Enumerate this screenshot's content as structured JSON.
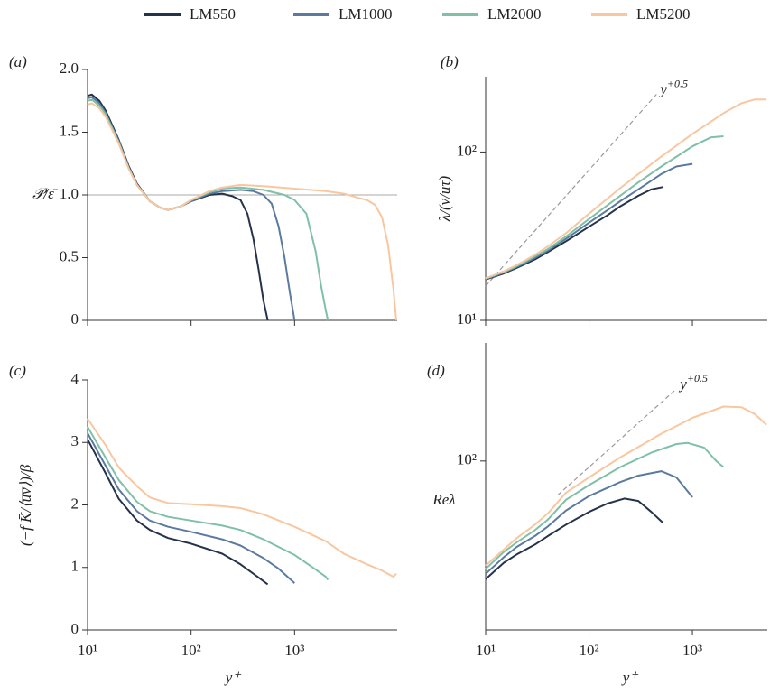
{
  "chart_data": [
    {
      "type": "line",
      "panel_label": "(a)",
      "y_label": "𝒫̄/ε̄",
      "xscale": "log",
      "yscale": "linear",
      "xlim": [
        10,
        9800
      ],
      "ylim": [
        0,
        2.0
      ],
      "xticks": [
        10,
        100,
        1000
      ],
      "yticks": [
        0,
        0.5,
        {
          "value": 1,
          "label": "1.0"
        },
        1.5,
        {
          "value": 2,
          "label": "2.0"
        }
      ],
      "hline": 1,
      "series": [
        {
          "name": "LM550",
          "color": "#26324a",
          "x": [
            10,
            11,
            13,
            15,
            20,
            25,
            30,
            40,
            50,
            60,
            80,
            100,
            150,
            200,
            250,
            300,
            350,
            400,
            450,
            500,
            550
          ],
          "values": [
            1.79,
            1.8,
            1.75,
            1.67,
            1.44,
            1.23,
            1.09,
            0.95,
            0.9,
            0.88,
            0.91,
            0.95,
            1.0,
            1.01,
            0.99,
            0.96,
            0.85,
            0.65,
            0.4,
            0.16,
            0
          ]
        },
        {
          "name": "LM1000",
          "color": "#5b7a9f",
          "x": [
            10,
            11,
            13,
            15,
            20,
            25,
            30,
            40,
            50,
            60,
            80,
            100,
            150,
            200,
            300,
            400,
            500,
            600,
            700,
            800,
            900,
            1000
          ],
          "values": [
            1.77,
            1.78,
            1.73,
            1.65,
            1.43,
            1.22,
            1.08,
            0.95,
            0.9,
            0.88,
            0.91,
            0.95,
            1.01,
            1.03,
            1.04,
            1.03,
            1.0,
            0.93,
            0.75,
            0.5,
            0.22,
            0
          ]
        },
        {
          "name": "LM2000",
          "color": "#7fc0a7",
          "x": [
            10,
            11,
            13,
            15,
            20,
            25,
            30,
            40,
            50,
            60,
            80,
            100,
            150,
            200,
            300,
            500,
            800,
            1000,
            1300,
            1600,
            1800,
            2000,
            2100
          ],
          "values": [
            1.75,
            1.76,
            1.71,
            1.64,
            1.42,
            1.21,
            1.08,
            0.95,
            0.9,
            0.88,
            0.91,
            0.96,
            1.02,
            1.05,
            1.06,
            1.04,
            1.0,
            0.96,
            0.85,
            0.55,
            0.28,
            0.08,
            0
          ]
        },
        {
          "name": "LM5200",
          "color": "#f8c7a0",
          "x": [
            10,
            11,
            13,
            15,
            20,
            25,
            30,
            40,
            50,
            60,
            80,
            100,
            150,
            200,
            300,
            500,
            1000,
            2000,
            3000,
            4000,
            5000,
            6000,
            7000,
            8000,
            9000,
            9600
          ],
          "values": [
            1.72,
            1.73,
            1.69,
            1.62,
            1.41,
            1.21,
            1.08,
            0.95,
            0.9,
            0.88,
            0.91,
            0.96,
            1.03,
            1.06,
            1.08,
            1.07,
            1.05,
            1.03,
            1.01,
            0.98,
            0.96,
            0.92,
            0.82,
            0.6,
            0.25,
            0
          ]
        }
      ]
    },
    {
      "type": "line",
      "panel_label": "(b)",
      "y_label": "λ/(ν/uτ)",
      "xscale": "log",
      "yscale": "log",
      "xlim": [
        10,
        5300
      ],
      "ylim": [
        10,
        280
      ],
      "xticks": [
        10,
        100,
        1000
      ],
      "yticks": [
        {
          "value": 10,
          "label": "10¹"
        },
        {
          "value": 100,
          "label": "10²"
        }
      ],
      "reference": {
        "x": [
          10,
          450
        ],
        "y": [
          16,
          220
        ],
        "label": "y",
        "label_sup": "+0.5"
      },
      "series": [
        {
          "color": "#26324a",
          "x": [
            10,
            15,
            20,
            30,
            40,
            60,
            100,
            150,
            200,
            300,
            400,
            520
          ],
          "values": [
            17.5,
            19,
            20.5,
            23,
            25.5,
            29.5,
            36,
            42,
            47.5,
            55,
            60,
            62
          ]
        },
        {
          "color": "#5b7a9f",
          "x": [
            10,
            15,
            20,
            30,
            40,
            60,
            100,
            150,
            200,
            300,
            500,
            700,
            1000
          ],
          "values": [
            17.6,
            19.2,
            20.8,
            23.5,
            26,
            30.5,
            38,
            45,
            51,
            60,
            74,
            82,
            85
          ]
        },
        {
          "color": "#7fc0a7",
          "x": [
            10,
            15,
            20,
            30,
            40,
            60,
            100,
            200,
            300,
            500,
            1000,
            1500,
            2000
          ],
          "values": [
            17.7,
            19.4,
            21,
            24,
            26.5,
            31.5,
            40,
            55,
            66,
            82,
            108,
            122,
            124
          ]
        },
        {
          "color": "#f8c7a0",
          "x": [
            10,
            15,
            20,
            30,
            40,
            60,
            100,
            200,
            300,
            500,
            1000,
            2000,
            3000,
            4000,
            5200
          ],
          "values": [
            17.8,
            19.6,
            21.3,
            24.5,
            27.5,
            33,
            43,
            61,
            74,
            94,
            128,
            170,
            195,
            205,
            205
          ]
        }
      ]
    },
    {
      "type": "line",
      "panel_label": "(c)",
      "y_label": "(−f K̄/⟨u̅v̅⟩)/β",
      "x_label": "y⁺",
      "xscale": "log",
      "yscale": "linear",
      "xlim": [
        10,
        9800
      ],
      "ylim": [
        0,
        4
      ],
      "xticks": [
        {
          "value": 10,
          "label": "10¹"
        },
        {
          "value": 100,
          "label": "10²"
        },
        {
          "value": 1000,
          "label": "10³"
        }
      ],
      "yticks": [
        0,
        1,
        2,
        3,
        4
      ],
      "series": [
        {
          "color": "#26324a",
          "x": [
            10,
            15,
            20,
            30,
            40,
            60,
            100,
            200,
            300,
            400,
            550
          ],
          "values": [
            3.05,
            2.5,
            2.1,
            1.75,
            1.6,
            1.47,
            1.38,
            1.22,
            1.05,
            0.9,
            0.73
          ]
        },
        {
          "color": "#5b7a9f",
          "x": [
            10,
            15,
            20,
            30,
            40,
            60,
            100,
            200,
            300,
            500,
            700,
            1000
          ],
          "values": [
            3.15,
            2.62,
            2.25,
            1.9,
            1.75,
            1.65,
            1.57,
            1.45,
            1.35,
            1.15,
            0.98,
            0.75
          ]
        },
        {
          "color": "#7fc0a7",
          "x": [
            10,
            15,
            20,
            30,
            40,
            60,
            100,
            200,
            300,
            500,
            1000,
            1500,
            2000,
            2100
          ],
          "values": [
            3.25,
            2.75,
            2.4,
            2.05,
            1.9,
            1.81,
            1.75,
            1.67,
            1.6,
            1.45,
            1.2,
            1.0,
            0.85,
            0.8
          ]
        },
        {
          "color": "#f8c7a0",
          "x": [
            10,
            15,
            20,
            30,
            40,
            60,
            100,
            200,
            300,
            500,
            1000,
            2000,
            3000,
            5000,
            7000,
            9000,
            9600
          ],
          "values": [
            3.38,
            2.95,
            2.6,
            2.3,
            2.12,
            2.03,
            2.01,
            1.98,
            1.95,
            1.85,
            1.65,
            1.42,
            1.22,
            1.05,
            0.95,
            0.85,
            0.9
          ]
        }
      ]
    },
    {
      "type": "line",
      "panel_label": "(d)",
      "y_label": "Reλ",
      "x_label": "y⁺",
      "xscale": "log",
      "yscale": "log",
      "xlim": [
        10,
        5300
      ],
      "ylim": [
        10,
        500
      ],
      "xticks": [
        {
          "value": 10,
          "label": "10¹"
        },
        {
          "value": 100,
          "label": "10²"
        },
        {
          "value": 1000,
          "label": "10³"
        }
      ],
      "yticks": [
        {
          "value": 100,
          "label": "10²"
        }
      ],
      "reference": {
        "x": [
          50,
          700
        ],
        "y": [
          63,
          267
        ],
        "label": "y",
        "label_sup": "+0.5"
      },
      "series": [
        {
          "color": "#26324a",
          "x": [
            10,
            15,
            20,
            30,
            40,
            60,
            100,
            150,
            220,
            300,
            400,
            520
          ],
          "values": [
            20,
            25,
            28,
            32,
            36,
            42,
            50,
            56,
            60,
            58,
            50,
            43
          ]
        },
        {
          "color": "#5b7a9f",
          "x": [
            10,
            15,
            20,
            30,
            40,
            60,
            100,
            200,
            300,
            500,
            700,
            1000
          ],
          "values": [
            21.5,
            27,
            31,
            36,
            41,
            51,
            62,
            75,
            82,
            87,
            80,
            61
          ]
        },
        {
          "color": "#7fc0a7",
          "x": [
            10,
            15,
            20,
            30,
            40,
            60,
            100,
            200,
            400,
            700,
            900,
            1300,
            1700,
            2000
          ],
          "values": [
            23,
            29,
            33,
            39,
            45,
            59,
            72,
            92,
            112,
            126,
            128,
            120,
            100,
            92
          ]
        },
        {
          "color": "#f8c7a0",
          "x": [
            10,
            15,
            20,
            30,
            40,
            60,
            100,
            200,
            500,
            1000,
            2000,
            3000,
            4000,
            5200
          ],
          "values": [
            24,
            30,
            35,
            42,
            49,
            65,
            80,
            105,
            145,
            180,
            210,
            208,
            190,
            164
          ]
        }
      ]
    }
  ]
}
